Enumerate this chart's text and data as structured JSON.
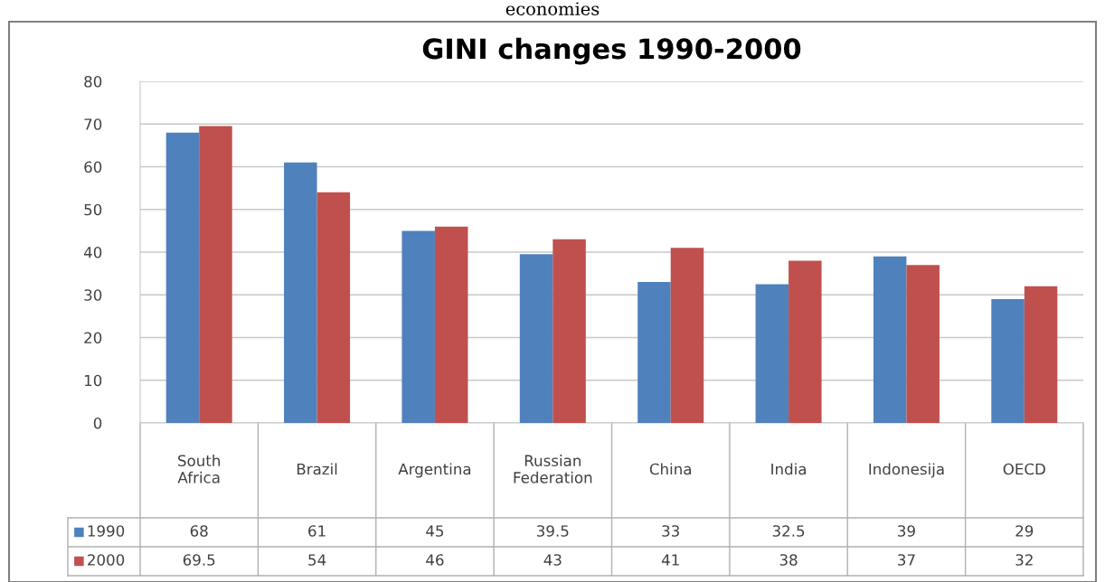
{
  "chart_data": {
    "type": "bar",
    "title": "GINI changes 1990-2000",
    "annotations": [
      "economies"
    ],
    "categories": [
      "South Africa",
      "Brazil",
      "Argentina",
      "Russian Federation",
      "China",
      "India",
      "Indonesija",
      "OECD"
    ],
    "series": [
      {
        "name": "1990",
        "color": "#4f81bd",
        "values": [
          68,
          61,
          45,
          39.5,
          33,
          32.5,
          39,
          29
        ]
      },
      {
        "name": "2000",
        "color": "#c0504d",
        "values": [
          69.5,
          54,
          46,
          43,
          41,
          38,
          37,
          32
        ]
      }
    ],
    "ylim": [
      0,
      80
    ],
    "yticks": [
      0,
      10,
      20,
      30,
      40,
      50,
      60,
      70,
      80
    ],
    "grid": "y",
    "data_labels": true,
    "legend": "bottom left"
  }
}
